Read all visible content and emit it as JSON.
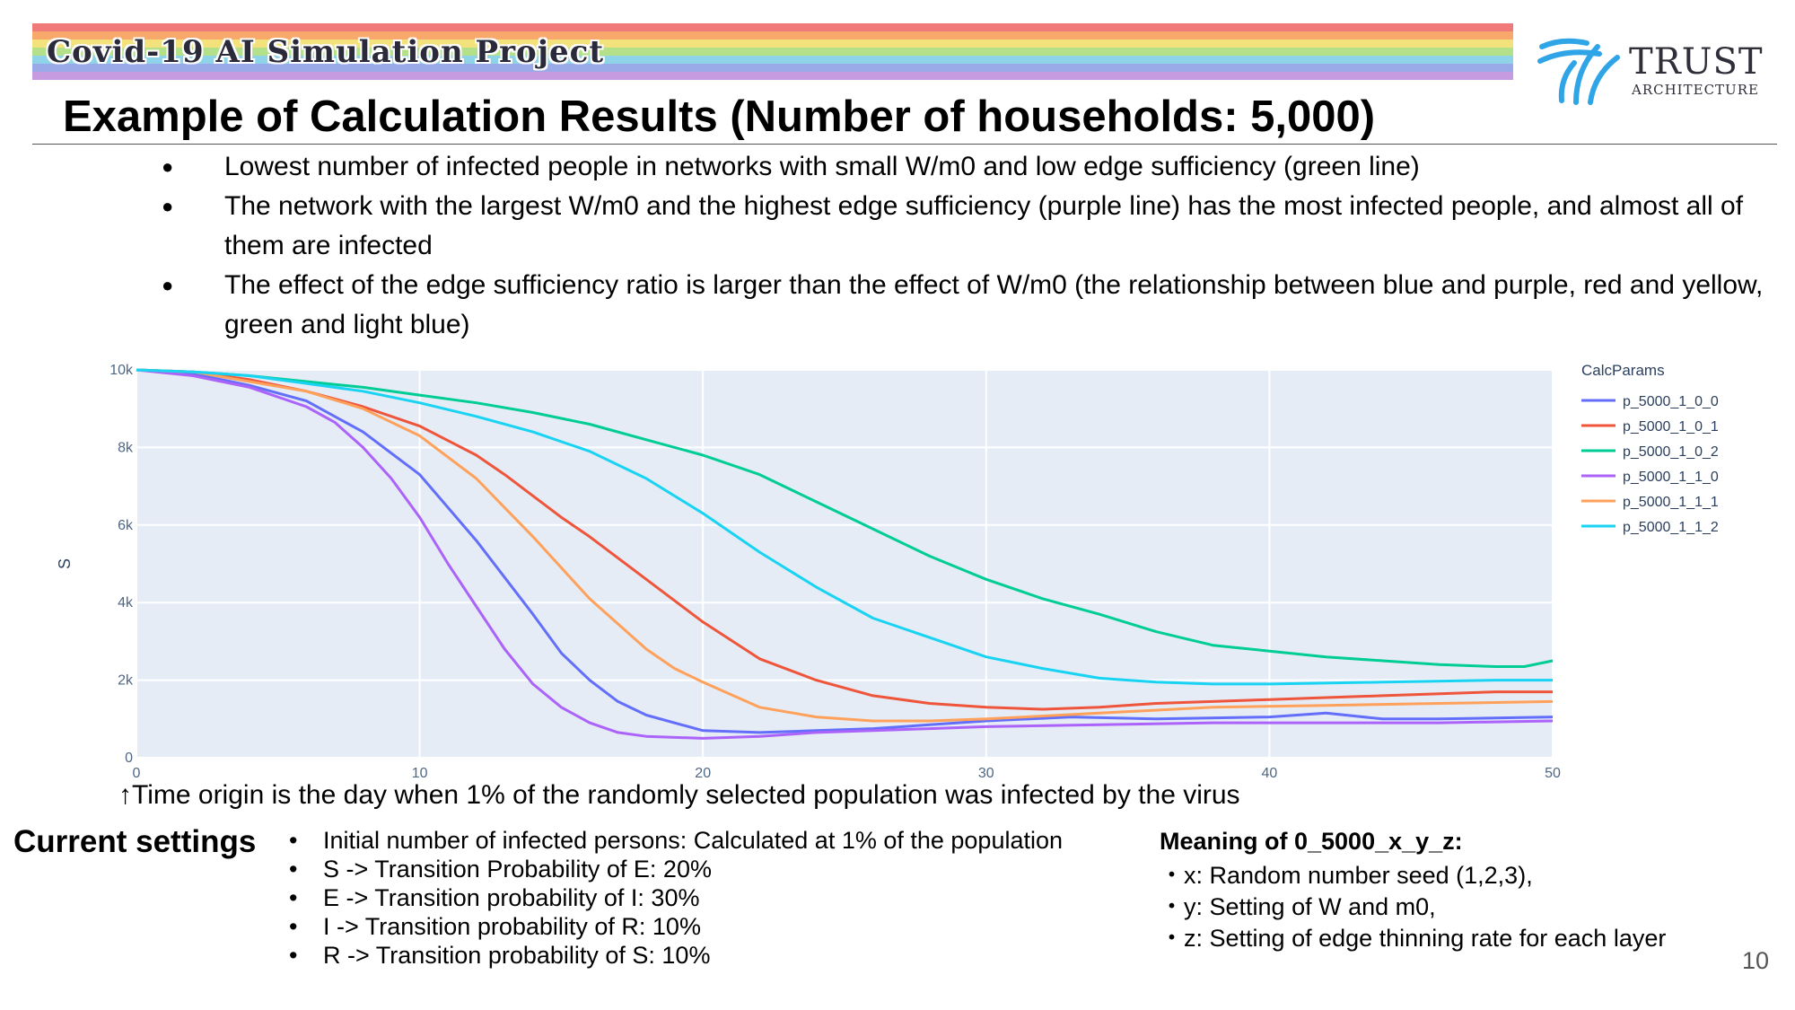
{
  "banner": {
    "text": "Covid-19 AI Simulation Project",
    "stripe_colors": [
      "#f0797a",
      "#f7a86a",
      "#f3e27c",
      "#b5e08a",
      "#8fd3e8",
      "#9aa9e8",
      "#c79be0"
    ]
  },
  "logo": {
    "name": "TRUST",
    "subtitle": "ARCHITECTURE",
    "icon": "trust-architecture-logo-icon",
    "color": "#2fa4e7"
  },
  "title": "Example of Calculation Results (Number of households: 5,000)",
  "bullets": [
    "Lowest number of infected people in networks with small W/m0 and low edge sufficiency (green line)",
    "The network with the largest W/m0 and the highest edge sufficiency (purple line) has the most infected people, and almost all of them are infected",
    "The effect of the edge sufficiency ratio is larger than the effect of W/m0 (the relationship between blue and purple, red and yellow, green and light blue)"
  ],
  "bullet_glyph": "●",
  "chart_data": {
    "type": "line",
    "title": "",
    "xlabel": "",
    "ylabel": "S",
    "xlim": [
      0,
      50
    ],
    "ylim": [
      0,
      10000
    ],
    "x_ticks": [
      0,
      10,
      20,
      30,
      40,
      50
    ],
    "y_ticks": [
      0,
      2000,
      4000,
      6000,
      8000,
      10000
    ],
    "y_tick_labels": [
      "0",
      "2k",
      "4k",
      "6k",
      "8k",
      "10k"
    ],
    "grid": true,
    "legend_title": "CalcParams",
    "legend_position": "right",
    "series": [
      {
        "name": "p_5000_1_0_0",
        "color": "#636efa",
        "x": [
          0,
          2,
          4,
          6,
          8,
          10,
          12,
          14,
          15,
          16,
          17,
          18,
          20,
          22,
          24,
          26,
          28,
          30,
          33,
          36,
          40,
          42,
          44,
          46,
          50
        ],
        "y": [
          10000,
          9900,
          9600,
          9200,
          8400,
          7300,
          5600,
          3700,
          2700,
          2000,
          1450,
          1100,
          700,
          650,
          700,
          750,
          850,
          950,
          1050,
          1000,
          1050,
          1150,
          1000,
          1000,
          1050
        ]
      },
      {
        "name": "p_5000_1_0_1",
        "color": "#ef553b",
        "x": [
          0,
          2,
          4,
          6,
          8,
          10,
          12,
          13,
          15,
          16,
          18,
          20,
          22,
          24,
          26,
          28,
          30,
          32,
          34,
          36,
          40,
          42,
          44,
          46,
          48,
          50
        ],
        "y": [
          10000,
          9950,
          9750,
          9450,
          9050,
          8550,
          7800,
          7300,
          6200,
          5700,
          4600,
          3500,
          2550,
          2000,
          1600,
          1400,
          1300,
          1250,
          1300,
          1400,
          1500,
          1550,
          1600,
          1650,
          1700,
          1700
        ]
      },
      {
        "name": "p_5000_1_0_2",
        "color": "#00cc96",
        "x": [
          0,
          2,
          4,
          6,
          8,
          10,
          12,
          14,
          16,
          18,
          20,
          22,
          24,
          26,
          28,
          30,
          32,
          34,
          36,
          38,
          40,
          42,
          44,
          46,
          48,
          49,
          50
        ],
        "y": [
          10000,
          9950,
          9850,
          9700,
          9550,
          9350,
          9150,
          8900,
          8600,
          8200,
          7800,
          7300,
          6600,
          5900,
          5200,
          4600,
          4100,
          3700,
          3250,
          2900,
          2750,
          2600,
          2500,
          2400,
          2350,
          2350,
          2500
        ]
      },
      {
        "name": "p_5000_1_1_0",
        "color": "#ab63fa",
        "x": [
          0,
          2,
          4,
          6,
          7,
          8,
          9,
          10,
          11,
          12,
          13,
          14,
          15,
          16,
          17,
          18,
          20,
          22,
          24,
          26,
          28,
          30,
          34,
          38,
          42,
          46,
          50
        ],
        "y": [
          10000,
          9850,
          9550,
          9050,
          8650,
          8000,
          7200,
          6200,
          5000,
          3900,
          2800,
          1900,
          1300,
          900,
          650,
          550,
          500,
          550,
          650,
          700,
          750,
          800,
          850,
          900,
          900,
          900,
          950
        ]
      },
      {
        "name": "p_5000_1_1_1",
        "color": "#ffa15a",
        "x": [
          0,
          2,
          4,
          6,
          8,
          10,
          12,
          14,
          16,
          18,
          19,
          20,
          22,
          24,
          26,
          28,
          30,
          34,
          38,
          42,
          46,
          50
        ],
        "y": [
          10000,
          9950,
          9700,
          9450,
          9000,
          8300,
          7200,
          5700,
          4100,
          2800,
          2300,
          1950,
          1300,
          1050,
          950,
          950,
          1000,
          1150,
          1300,
          1350,
          1400,
          1450
        ]
      },
      {
        "name": "p_5000_1_1_2",
        "color": "#19d3f3",
        "x": [
          0,
          2,
          4,
          6,
          8,
          10,
          12,
          14,
          16,
          18,
          20,
          22,
          24,
          26,
          28,
          30,
          32,
          34,
          36,
          38,
          40,
          44,
          48,
          50
        ],
        "y": [
          10000,
          9950,
          9850,
          9650,
          9450,
          9150,
          8800,
          8400,
          7900,
          7200,
          6300,
          5300,
          4400,
          3600,
          3100,
          2600,
          2300,
          2050,
          1950,
          1900,
          1900,
          1950,
          2000,
          2000
        ]
      }
    ]
  },
  "caption": "↑Time origin is the day when 1% of the randomly selected population was infected by the virus",
  "settings": {
    "title": "Current settings",
    "bullet_glyph": "•",
    "items": [
      "Initial number of infected persons:  Calculated at 1% of the population",
      "S -> Transition Probability of E: 20%",
      "E -> Transition probability of I: 30%",
      "I -> Transition probability of R: 10%",
      "R -> Transition probability of S: 10%"
    ]
  },
  "meaning": {
    "title": "Meaning of 0_5000_x_y_z:",
    "items": [
      "・x: Random number seed (1,2,3),",
      "・y: Setting of W and m0,",
      "・z: Setting of edge thinning rate for each layer"
    ]
  },
  "page_number": "10"
}
